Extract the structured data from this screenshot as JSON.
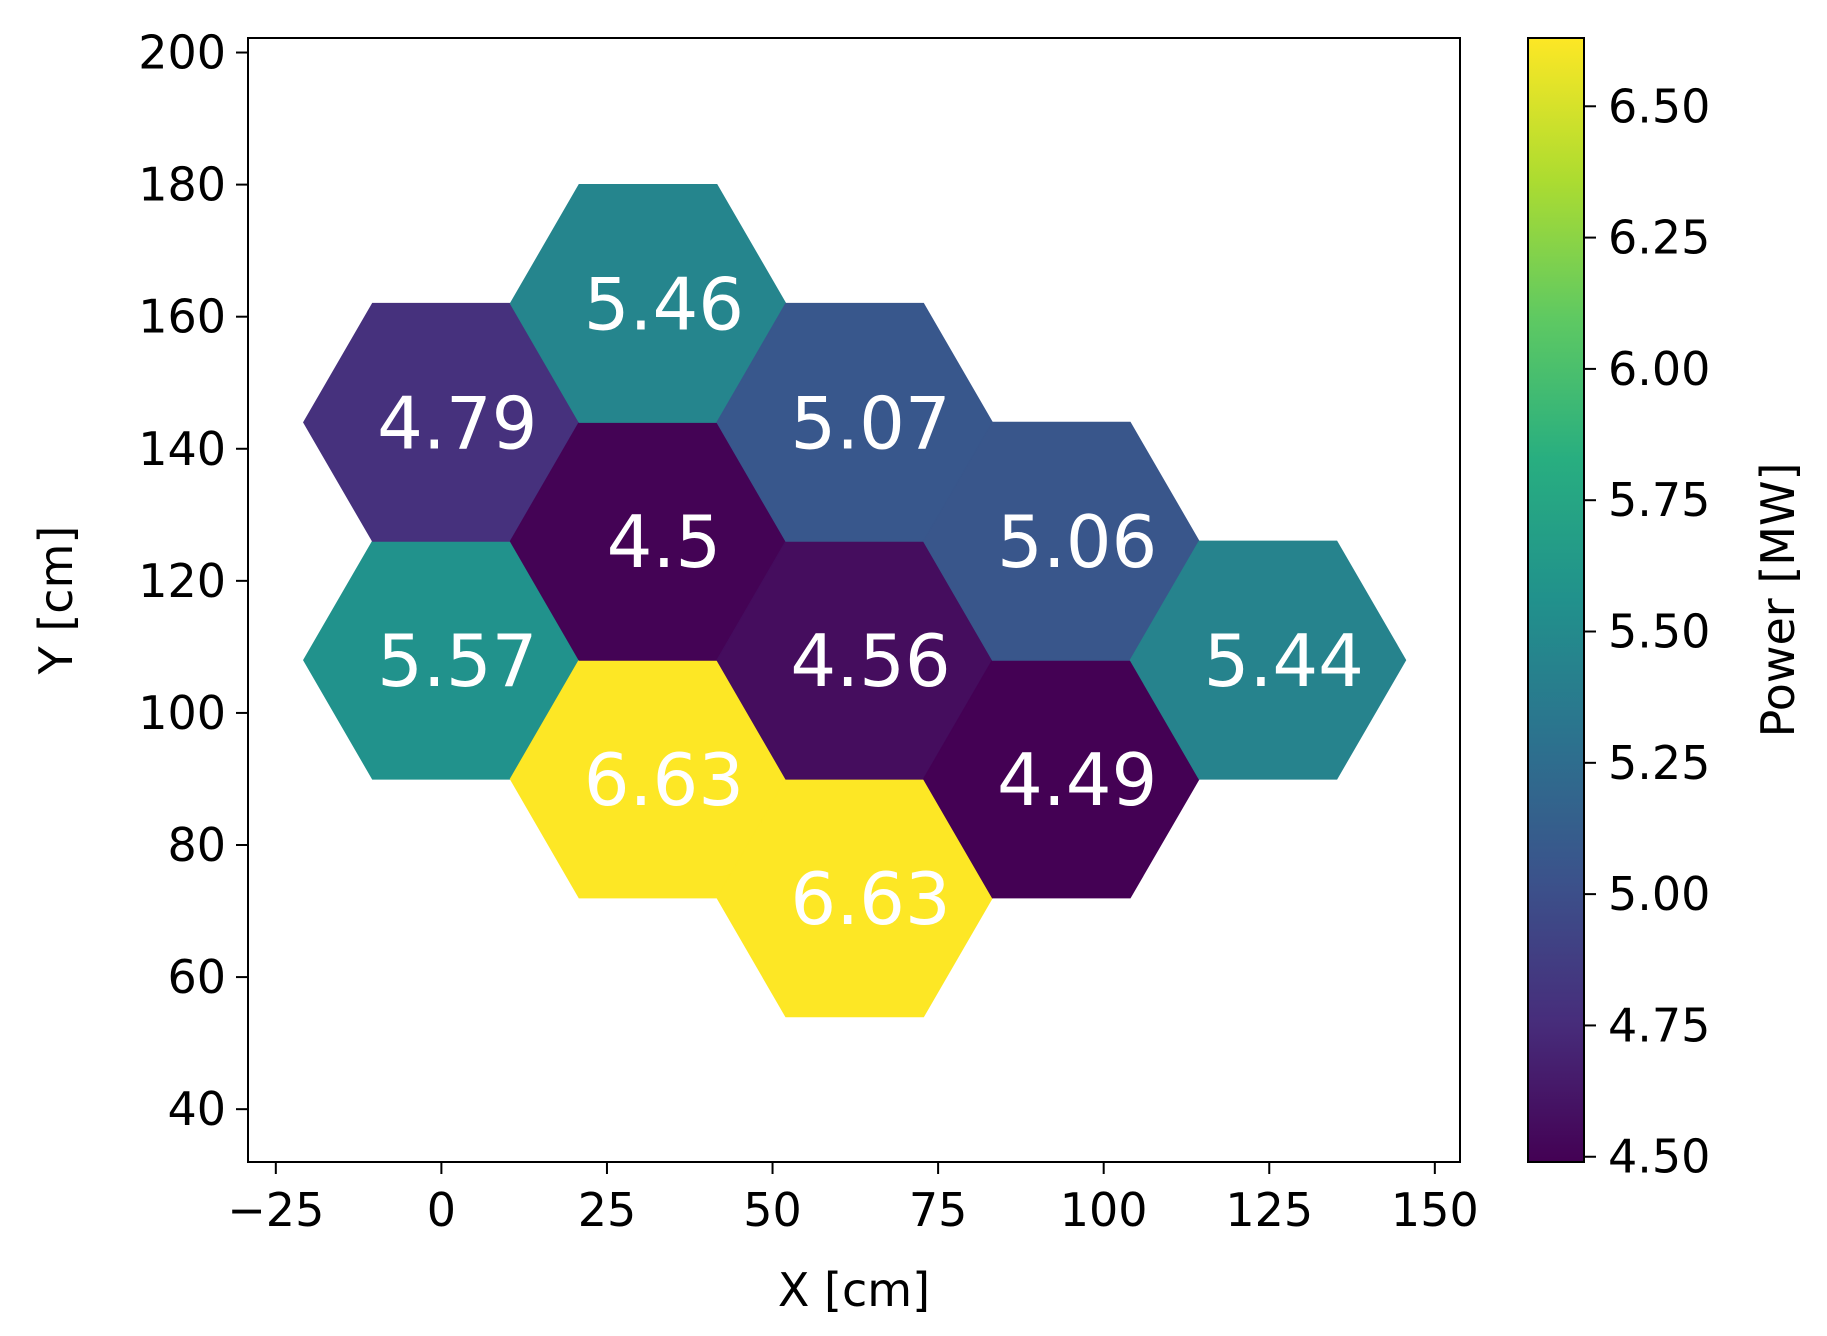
{
  "chart_data": {
    "type": "heatmap",
    "title": "",
    "xlabel": "X [cm]",
    "ylabel": "Y [cm]",
    "xlim": [
      -29.2,
      153.8
    ],
    "ylim": [
      32.0,
      202.2
    ],
    "xticks": [
      -25,
      0,
      25,
      50,
      75,
      100,
      125,
      150
    ],
    "xtick_labels": [
      "−25",
      "0",
      "25",
      "50",
      "75",
      "100",
      "125",
      "150"
    ],
    "yticks": [
      40,
      60,
      80,
      100,
      120,
      140,
      160,
      180,
      200
    ],
    "ytick_labels": [
      "40",
      "60",
      "80",
      "100",
      "120",
      "140",
      "160",
      "180",
      "200"
    ],
    "grid": false,
    "hex_radius": 20.8,
    "cells": [
      {
        "x": 0.0,
        "y": 108.0,
        "value": 5.57,
        "label": "5.57"
      },
      {
        "x": 0.0,
        "y": 144.0,
        "value": 4.79,
        "label": "4.79"
      },
      {
        "x": 31.2,
        "y": 90.0,
        "value": 6.63,
        "label": "6.63"
      },
      {
        "x": 31.2,
        "y": 126.0,
        "value": 4.5,
        "label": "4.5"
      },
      {
        "x": 31.2,
        "y": 162.0,
        "value": 5.46,
        "label": "5.46"
      },
      {
        "x": 62.4,
        "y": 72.0,
        "value": 6.63,
        "label": "6.63"
      },
      {
        "x": 62.4,
        "y": 108.0,
        "value": 4.56,
        "label": "4.56"
      },
      {
        "x": 62.4,
        "y": 144.0,
        "value": 5.07,
        "label": "5.07"
      },
      {
        "x": 93.6,
        "y": 90.0,
        "value": 4.49,
        "label": "4.49"
      },
      {
        "x": 93.6,
        "y": 126.0,
        "value": 5.06,
        "label": "5.06"
      },
      {
        "x": 124.8,
        "y": 108.0,
        "value": 5.44,
        "label": "5.44"
      }
    ],
    "colorbar": {
      "label": "Power [MW]",
      "colormap": "viridis",
      "range": [
        4.49,
        6.63
      ],
      "ticks": [
        4.5,
        4.75,
        5.0,
        5.25,
        5.5,
        5.75,
        6.0,
        6.25,
        6.5
      ],
      "tick_labels": [
        "4.50",
        "4.75",
        "5.00",
        "5.25",
        "5.50",
        "5.75",
        "6.00",
        "6.25",
        "6.50"
      ]
    }
  }
}
